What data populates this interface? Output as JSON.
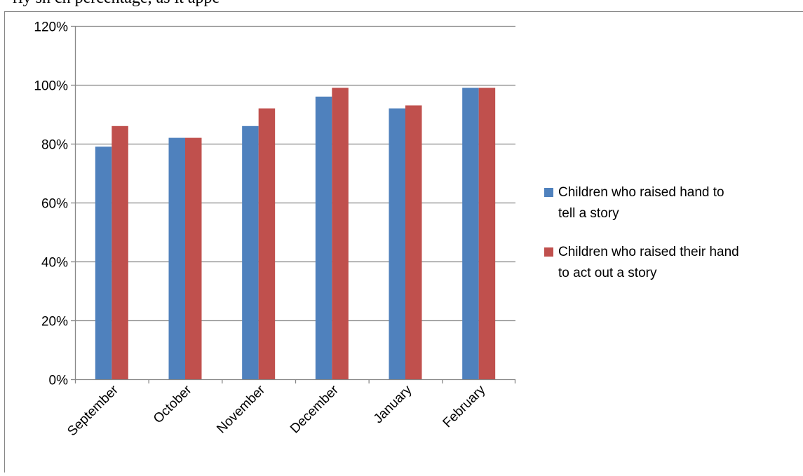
{
  "document": {
    "cropped_text": "rly sh                                                                       ch percentage, as it appe"
  },
  "colors": {
    "series_1": "#4f81bd",
    "series_2": "#c0504d",
    "gridline": "#878787",
    "axis": "#878787",
    "frame": "#878787",
    "text": "#000000"
  },
  "chart_data": {
    "type": "bar",
    "categories": [
      "September",
      "October",
      "November",
      "December",
      "January",
      "February"
    ],
    "series": [
      {
        "name": "Children who raised  hand to tell a story",
        "legend_lines": [
          "Children who raised  hand to",
          "tell a story"
        ],
        "values": [
          0.79,
          0.82,
          0.86,
          0.96,
          0.92,
          0.99
        ]
      },
      {
        "name": "Children who raised their hand to act out a story",
        "legend_lines": [
          "Children who raised their hand",
          "to act out a story"
        ],
        "values": [
          0.86,
          0.82,
          0.92,
          0.99,
          0.93,
          0.99
        ]
      }
    ],
    "ylim": [
      0,
      1.2
    ],
    "yticks": [
      "0%",
      "20%",
      "40%",
      "60%",
      "80%",
      "100%",
      "120%"
    ],
    "y_format": "percent",
    "grid": true,
    "legend": "right",
    "title": "",
    "xlabel": "",
    "ylabel": ""
  }
}
